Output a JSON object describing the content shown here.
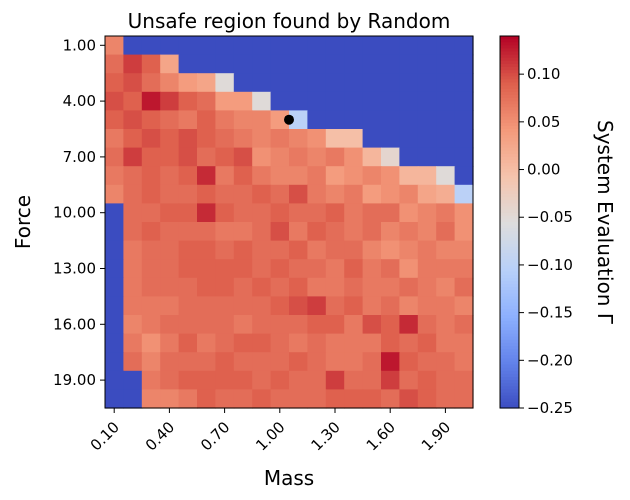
{
  "chart_data": {
    "type": "heatmap",
    "title": "Unsafe region found by Random",
    "xlabel": "Mass",
    "ylabel": "Force",
    "colorbar_label": "System Evaluation Γ",
    "colormap": "coolwarm",
    "vmin": -0.25,
    "vmax": 0.14,
    "x_values": [
      0.1,
      0.2,
      0.3,
      0.4,
      0.5,
      0.6,
      0.7,
      0.8,
      0.9,
      1.0,
      1.1,
      1.2,
      1.3,
      1.4,
      1.5,
      1.6,
      1.7,
      1.8,
      1.9,
      2.0
    ],
    "y_values": [
      1,
      2,
      3,
      4,
      5,
      6,
      7,
      8,
      9,
      10,
      11,
      12,
      13,
      14,
      15,
      16,
      17,
      18,
      19,
      20
    ],
    "x_tick_labels": [
      "0.10",
      "0.40",
      "0.70",
      "1.00",
      "1.30",
      "1.60",
      "1.90"
    ],
    "y_tick_labels": [
      "1.00",
      "4.00",
      "7.00",
      "10.00",
      "13.00",
      "16.00",
      "19.00"
    ],
    "colorbar_ticks": [
      "0.10",
      "0.05",
      "0.00",
      "−0.05",
      "−0.10",
      "−0.15",
      "−0.20",
      "−0.25"
    ],
    "colorbar_tick_values": [
      0.1,
      0.05,
      0.0,
      -0.05,
      -0.1,
      -0.15,
      -0.2,
      -0.25
    ],
    "marker": {
      "x": 1.05,
      "y": 5.0
    },
    "unsafe_value": -0.25,
    "z": [
      [
        0.06,
        -0.25,
        -0.25,
        -0.25,
        -0.25,
        -0.25,
        -0.25,
        -0.25,
        -0.25,
        -0.25,
        -0.25,
        -0.25,
        -0.25,
        -0.25,
        -0.25,
        -0.25,
        -0.25,
        -0.25,
        -0.25,
        -0.25
      ],
      [
        0.08,
        0.11,
        0.09,
        0.03,
        -0.25,
        -0.25,
        -0.25,
        -0.25,
        -0.25,
        -0.25,
        -0.25,
        -0.25,
        -0.25,
        -0.25,
        -0.25,
        -0.25,
        -0.25,
        -0.25,
        -0.25,
        -0.25
      ],
      [
        0.09,
        0.1,
        0.08,
        0.06,
        0.04,
        0.03,
        -0.05,
        -0.25,
        -0.25,
        -0.25,
        -0.25,
        -0.25,
        -0.25,
        -0.25,
        -0.25,
        -0.25,
        -0.25,
        -0.25,
        -0.25,
        -0.25
      ],
      [
        0.1,
        0.09,
        0.13,
        0.11,
        0.09,
        0.08,
        0.04,
        0.04,
        -0.05,
        -0.25,
        -0.25,
        -0.25,
        -0.25,
        -0.25,
        -0.25,
        -0.25,
        -0.25,
        -0.25,
        -0.25,
        -0.25
      ],
      [
        0.09,
        0.1,
        0.09,
        0.08,
        0.07,
        0.09,
        0.07,
        0.06,
        0.06,
        0.04,
        -0.1,
        -0.25,
        -0.25,
        -0.25,
        -0.25,
        -0.25,
        -0.25,
        -0.25,
        -0.25,
        -0.25
      ],
      [
        0.07,
        0.09,
        0.1,
        0.09,
        0.1,
        0.09,
        0.08,
        0.07,
        0.06,
        0.07,
        0.06,
        0.05,
        0.0,
        0.0,
        -0.25,
        -0.25,
        -0.25,
        -0.25,
        -0.25,
        -0.25
      ],
      [
        0.08,
        0.11,
        0.09,
        0.09,
        0.1,
        0.08,
        0.09,
        0.1,
        0.05,
        0.06,
        0.07,
        0.06,
        0.07,
        0.05,
        0.01,
        -0.04,
        -0.25,
        -0.25,
        -0.25,
        -0.25
      ],
      [
        0.07,
        0.08,
        0.09,
        0.08,
        0.09,
        0.12,
        0.07,
        0.09,
        0.07,
        0.06,
        0.06,
        0.07,
        0.04,
        0.05,
        0.06,
        0.05,
        0.01,
        0.01,
        -0.05,
        -0.25
      ],
      [
        0.06,
        0.08,
        0.09,
        0.08,
        0.08,
        0.09,
        0.08,
        0.08,
        0.09,
        0.08,
        0.1,
        0.07,
        0.06,
        0.07,
        0.04,
        0.05,
        0.06,
        0.03,
        0.02,
        -0.1
      ],
      [
        -0.25,
        0.08,
        0.08,
        0.09,
        0.09,
        0.12,
        0.09,
        0.08,
        0.08,
        0.09,
        0.08,
        0.08,
        0.09,
        0.07,
        0.08,
        0.08,
        0.05,
        0.06,
        0.07,
        0.05
      ],
      [
        -0.25,
        0.08,
        0.09,
        0.08,
        0.08,
        0.08,
        0.07,
        0.07,
        0.08,
        0.1,
        0.07,
        0.09,
        0.08,
        0.07,
        0.08,
        0.06,
        0.07,
        0.06,
        0.08,
        0.05
      ],
      [
        -0.25,
        0.07,
        0.08,
        0.08,
        0.09,
        0.09,
        0.08,
        0.09,
        0.08,
        0.08,
        0.09,
        0.07,
        0.08,
        0.08,
        0.06,
        0.05,
        0.06,
        0.07,
        0.06,
        0.06
      ],
      [
        -0.25,
        0.07,
        0.08,
        0.08,
        0.09,
        0.09,
        0.09,
        0.09,
        0.08,
        0.09,
        0.08,
        0.08,
        0.07,
        0.09,
        0.07,
        0.08,
        0.05,
        0.07,
        0.07,
        0.07
      ],
      [
        -0.25,
        0.07,
        0.08,
        0.08,
        0.08,
        0.09,
        0.09,
        0.08,
        0.09,
        0.08,
        0.09,
        0.07,
        0.07,
        0.08,
        0.07,
        0.07,
        0.08,
        0.07,
        0.06,
        0.08
      ],
      [
        -0.25,
        0.07,
        0.07,
        0.07,
        0.08,
        0.08,
        0.08,
        0.08,
        0.08,
        0.09,
        0.1,
        0.11,
        0.08,
        0.09,
        0.07,
        0.08,
        0.06,
        0.07,
        0.07,
        0.06
      ],
      [
        -0.25,
        0.06,
        0.07,
        0.08,
        0.08,
        0.08,
        0.08,
        0.07,
        0.08,
        0.08,
        0.08,
        0.09,
        0.09,
        0.07,
        0.1,
        0.09,
        0.12,
        0.08,
        0.07,
        0.08
      ],
      [
        -0.25,
        0.07,
        0.05,
        0.07,
        0.09,
        0.07,
        0.08,
        0.09,
        0.09,
        0.08,
        0.07,
        0.08,
        0.07,
        0.07,
        0.07,
        0.09,
        0.08,
        0.09,
        0.07,
        0.07
      ],
      [
        -0.25,
        0.08,
        0.06,
        0.08,
        0.08,
        0.08,
        0.09,
        0.08,
        0.08,
        0.08,
        0.09,
        0.08,
        0.07,
        0.07,
        0.08,
        0.13,
        0.09,
        0.08,
        0.08,
        0.07
      ],
      [
        -0.25,
        -0.25,
        0.07,
        0.08,
        0.09,
        0.09,
        0.09,
        0.09,
        0.08,
        0.09,
        0.08,
        0.08,
        0.11,
        0.08,
        0.08,
        0.11,
        0.08,
        0.09,
        0.08,
        0.08
      ],
      [
        -0.25,
        -0.25,
        0.06,
        0.06,
        0.07,
        0.09,
        0.08,
        0.08,
        0.09,
        0.08,
        0.08,
        0.08,
        0.09,
        0.09,
        0.09,
        0.08,
        0.1,
        0.09,
        0.08,
        0.08
      ]
    ]
  }
}
